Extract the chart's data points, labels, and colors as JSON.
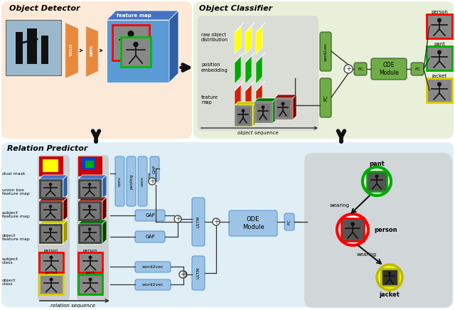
{
  "bg_detector": "#fce8d5",
  "bg_classifier": "#e8f0d8",
  "bg_predictor": "#ddeef8",
  "colors": {
    "orange": "#E8883A",
    "blue": "#5B9BD5",
    "light_blue": "#9DC3E6",
    "green": "#70AD47",
    "dark_green": "#375623",
    "red": "#CC0000",
    "yellow": "#FFFF00",
    "gray_panel": "#c8c8c8",
    "dark": "#222222"
  },
  "section_titles": [
    "Object Detector",
    "Object Classifier",
    "Relation Predictor"
  ],
  "classifier_labels": [
    "raw object\ndistribution",
    "position\nembedding",
    "feature\nmap"
  ],
  "predictor_row_labels": [
    "dual mask",
    "union box\nfeature map",
    "subject\nfeature map",
    "object\nfeature map",
    "subject\nclass",
    "object\nclass"
  ],
  "output_classifier": [
    "person",
    "pant",
    "jacket"
  ],
  "output_predictor": [
    "pant",
    "person",
    "jacket"
  ],
  "relation_labels": [
    "wearing",
    "wearing"
  ]
}
